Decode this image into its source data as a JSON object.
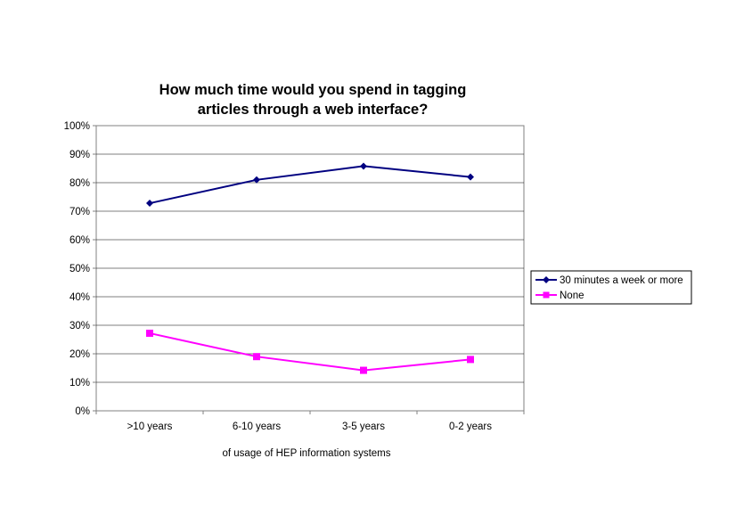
{
  "chart_data": {
    "type": "line",
    "title": "How much time would you spend in tagging articles through a web interface?",
    "title_lines": [
      "How much time would you spend in tagging",
      "articles through a web interface?"
    ],
    "xlabel": "of usage of HEP information systems",
    "ylabel": "",
    "categories": [
      ">10 years",
      "6-10 years",
      "3-5 years",
      "0-2 years"
    ],
    "y_ticks": [
      "0%",
      "10%",
      "20%",
      "30%",
      "40%",
      "50%",
      "60%",
      "70%",
      "80%",
      "90%",
      "100%"
    ],
    "ylim": [
      0,
      100
    ],
    "grid": true,
    "legend_position": "right",
    "series": [
      {
        "name": "30 minutes a week or more",
        "values": [
          72.8,
          81.0,
          85.8,
          82.0
        ],
        "color": "#000080",
        "marker": "diamond"
      },
      {
        "name": "None",
        "values": [
          27.2,
          19.0,
          14.2,
          18.0
        ],
        "color": "#FF00FF",
        "marker": "square"
      }
    ]
  }
}
